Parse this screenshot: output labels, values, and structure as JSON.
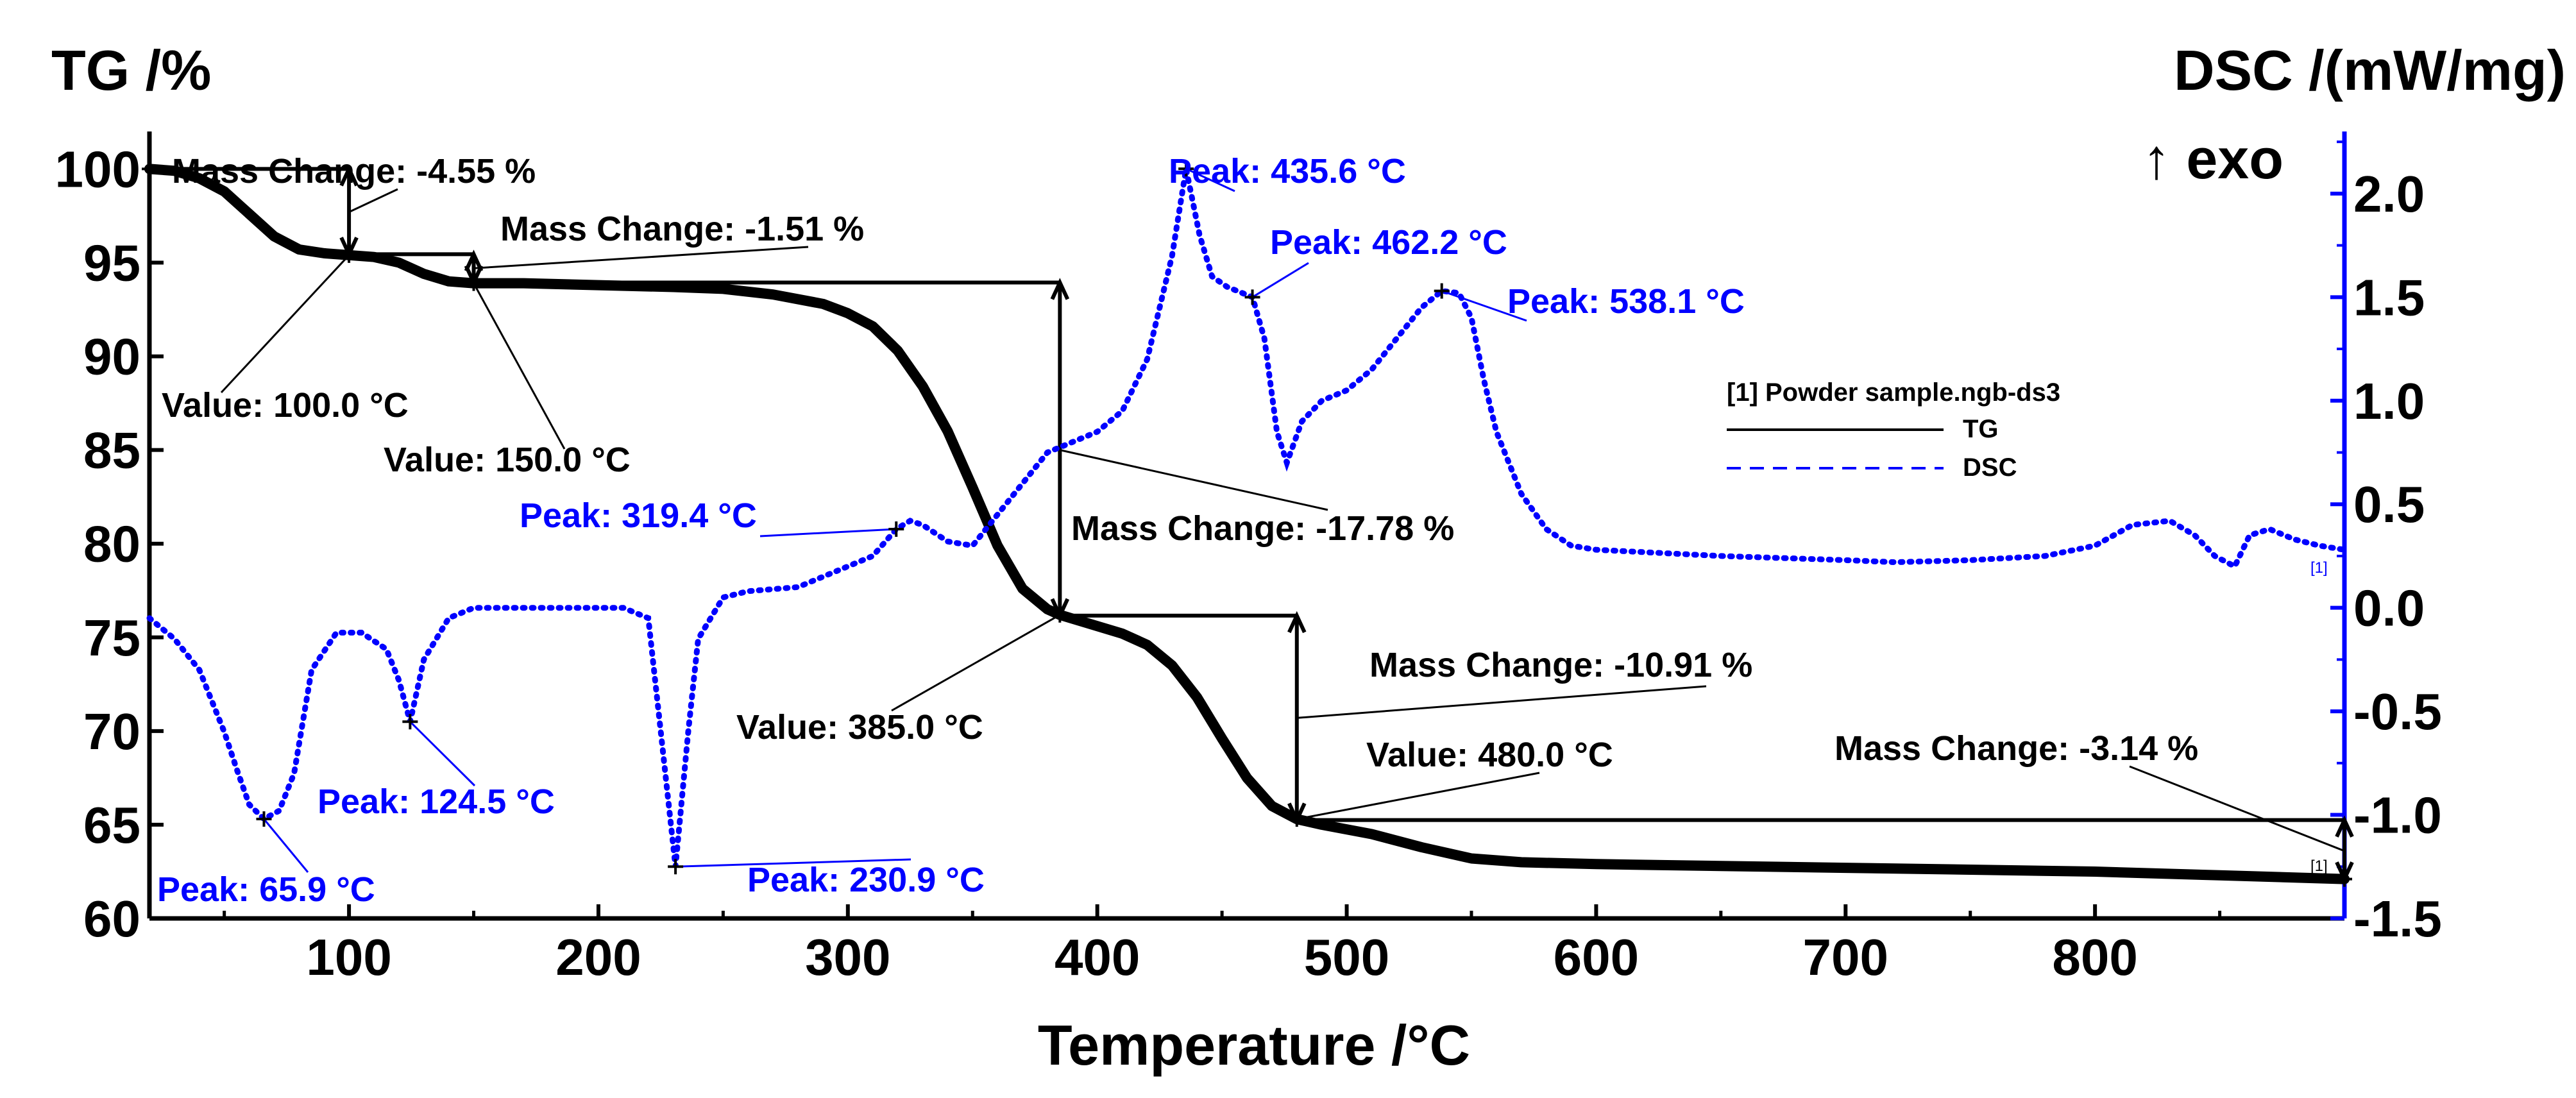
{
  "chart_data": {
    "type": "line",
    "xlabel": "Temperature /°C",
    "ylabel_left": "TG /%",
    "ylabel_right": "DSC /(mW/mg)",
    "exo_label": "↑ exo",
    "xlim": [
      20,
      900
    ],
    "ylim_left": [
      60,
      102
    ],
    "ylim_right": [
      -1.5,
      2.3
    ],
    "x_ticks": [
      100,
      200,
      300,
      400,
      500,
      600,
      700,
      800
    ],
    "y_left_ticks": [
      60,
      65,
      70,
      75,
      80,
      85,
      90,
      95,
      100
    ],
    "y_right_ticks": [
      -1.5,
      -1.0,
      -0.5,
      0.0,
      0.5,
      1.0,
      1.5,
      2.0
    ],
    "y_right_tick_labels": [
      "-1.5",
      "-1.0",
      "-0.5",
      "0.0",
      "0.5",
      "1.0",
      "1.5",
      "2.0"
    ],
    "colors": {
      "tg": "#000000",
      "dsc": "#0000ff",
      "axis_right": "#0000ff"
    },
    "legend": {
      "title": "[1] Powder sample.ngb-ds3",
      "tg_label": "TG",
      "dsc_label": "DSC",
      "position": "right"
    },
    "end_marker": "[1]",
    "series": [
      {
        "name": "TG",
        "axis": "left",
        "x": [
          20,
          30,
          40,
          50,
          60,
          70,
          80,
          90,
          100,
          110,
          120,
          130,
          140,
          150,
          170,
          200,
          230,
          250,
          270,
          290,
          300,
          310,
          320,
          330,
          340,
          350,
          360,
          370,
          380,
          385,
          395,
          410,
          420,
          430,
          440,
          450,
          460,
          470,
          480,
          490,
          510,
          530,
          550,
          570,
          600,
          650,
          700,
          750,
          800,
          850,
          900
        ],
        "values": [
          100.0,
          99.9,
          99.5,
          98.8,
          97.6,
          96.4,
          95.7,
          95.5,
          95.4,
          95.3,
          95.0,
          94.4,
          94.0,
          93.9,
          93.9,
          93.8,
          93.7,
          93.6,
          93.3,
          92.8,
          92.3,
          91.6,
          90.3,
          88.4,
          86.0,
          83.0,
          79.9,
          77.6,
          76.5,
          76.2,
          75.8,
          75.2,
          74.6,
          73.5,
          71.8,
          69.6,
          67.5,
          66.0,
          65.3,
          65.0,
          64.5,
          63.8,
          63.2,
          63.0,
          62.9,
          62.8,
          62.7,
          62.6,
          62.5,
          62.3,
          62.1
        ]
      },
      {
        "name": "DSC",
        "axis": "right",
        "x": [
          20,
          30,
          40,
          50,
          55,
          60,
          65.9,
          72,
          78,
          85,
          95,
          105,
          115,
          120,
          124.5,
          130,
          140,
          150,
          160,
          180,
          200,
          210,
          220,
          225,
          230.9,
          236,
          240,
          250,
          260,
          280,
          300,
          310,
          319.4,
          325,
          330,
          340,
          350,
          360,
          370,
          380,
          390,
          400,
          410,
          420,
          430,
          435.6,
          441,
          446,
          452,
          462.2,
          467,
          472,
          476,
          482,
          490,
          500,
          510,
          520,
          530,
          538.1,
          545,
          550,
          555,
          560,
          570,
          580,
          590,
          600,
          650,
          700,
          720,
          750,
          780,
          800,
          815,
          830,
          840,
          848,
          856,
          862,
          870,
          880,
          890,
          900
        ],
        "values": [
          -0.05,
          -0.15,
          -0.3,
          -0.6,
          -0.78,
          -0.95,
          -1.02,
          -0.98,
          -0.8,
          -0.3,
          -0.12,
          -0.12,
          -0.2,
          -0.35,
          -0.55,
          -0.25,
          -0.05,
          0.0,
          0.0,
          0.0,
          0.0,
          0.0,
          -0.05,
          -0.6,
          -1.25,
          -0.6,
          -0.15,
          0.05,
          0.08,
          0.1,
          0.2,
          0.25,
          0.38,
          0.42,
          0.4,
          0.32,
          0.3,
          0.45,
          0.6,
          0.75,
          0.8,
          0.85,
          0.95,
          1.2,
          1.7,
          2.12,
          1.8,
          1.6,
          1.55,
          1.5,
          1.3,
          0.85,
          0.7,
          0.9,
          1.0,
          1.05,
          1.15,
          1.3,
          1.45,
          1.53,
          1.52,
          1.4,
          1.1,
          0.85,
          0.55,
          0.38,
          0.3,
          0.28,
          0.25,
          0.23,
          0.22,
          0.23,
          0.25,
          0.3,
          0.4,
          0.42,
          0.35,
          0.25,
          0.2,
          0.35,
          0.38,
          0.33,
          0.3,
          0.28
        ]
      }
    ],
    "annotations": [
      {
        "id": "mc1",
        "color": "black",
        "text": "Mass Change: -4.55 %"
      },
      {
        "id": "mc2",
        "color": "black",
        "text": "Mass Change: -1.51 %"
      },
      {
        "id": "v100",
        "color": "black",
        "text": "Value: 100.0 °C"
      },
      {
        "id": "v150",
        "color": "black",
        "text": "Value: 150.0 °C"
      },
      {
        "id": "mc3",
        "color": "black",
        "text": "Mass Change: -17.78 %"
      },
      {
        "id": "v385",
        "color": "black",
        "text": "Value: 385.0 °C"
      },
      {
        "id": "mc4",
        "color": "black",
        "text": "Mass Change: -10.91 %"
      },
      {
        "id": "v480",
        "color": "black",
        "text": "Value: 480.0 °C"
      },
      {
        "id": "mc5",
        "color": "black",
        "text": "Mass Change: -3.14 %"
      },
      {
        "id": "p435",
        "color": "blue",
        "text": "Peak: 435.6 °C"
      },
      {
        "id": "p462",
        "color": "blue",
        "text": "Peak: 462.2 °C"
      },
      {
        "id": "p538",
        "color": "blue",
        "text": "Peak: 538.1 °C"
      },
      {
        "id": "p319",
        "color": "blue",
        "text": "Peak: 319.4 °C"
      },
      {
        "id": "p124",
        "color": "blue",
        "text": "Peak: 124.5 °C"
      },
      {
        "id": "p65",
        "color": "blue",
        "text": "Peak: 65.9 °C"
      },
      {
        "id": "p230",
        "color": "blue",
        "text": "Peak: 230.9 °C"
      }
    ]
  }
}
